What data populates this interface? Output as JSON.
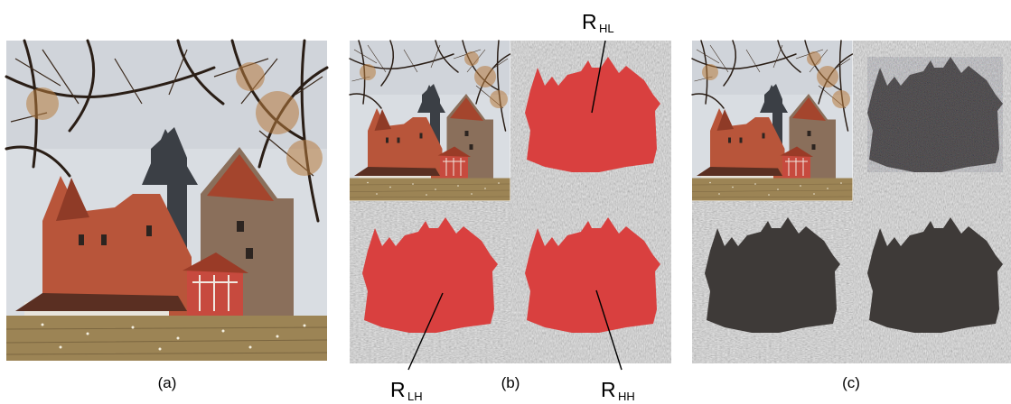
{
  "panels": {
    "a": {
      "caption": "(a)"
    },
    "b": {
      "caption": "(b)"
    },
    "c": {
      "caption": "(c)"
    }
  },
  "subbands": {
    "hl": {
      "letter": "R",
      "subscript": "HL"
    },
    "lh": {
      "letter": "R",
      "subscript": "LH"
    },
    "hh": {
      "letter": "R",
      "subscript": "HH"
    }
  },
  "colors": {
    "sky": "#d9dde2",
    "wall_brick": "#b8553a",
    "wall_stone": "#8a6f5b",
    "roof_slate": "#3b3f45",
    "roof_tile": "#a4452d",
    "half_timber": "#c74a3e",
    "white_wall": "#e8e4dc",
    "grass": "#9c8455",
    "detail_gray": "#9a9a9a",
    "region_red": "#d9403f",
    "region_dark": "#3e3a38"
  }
}
